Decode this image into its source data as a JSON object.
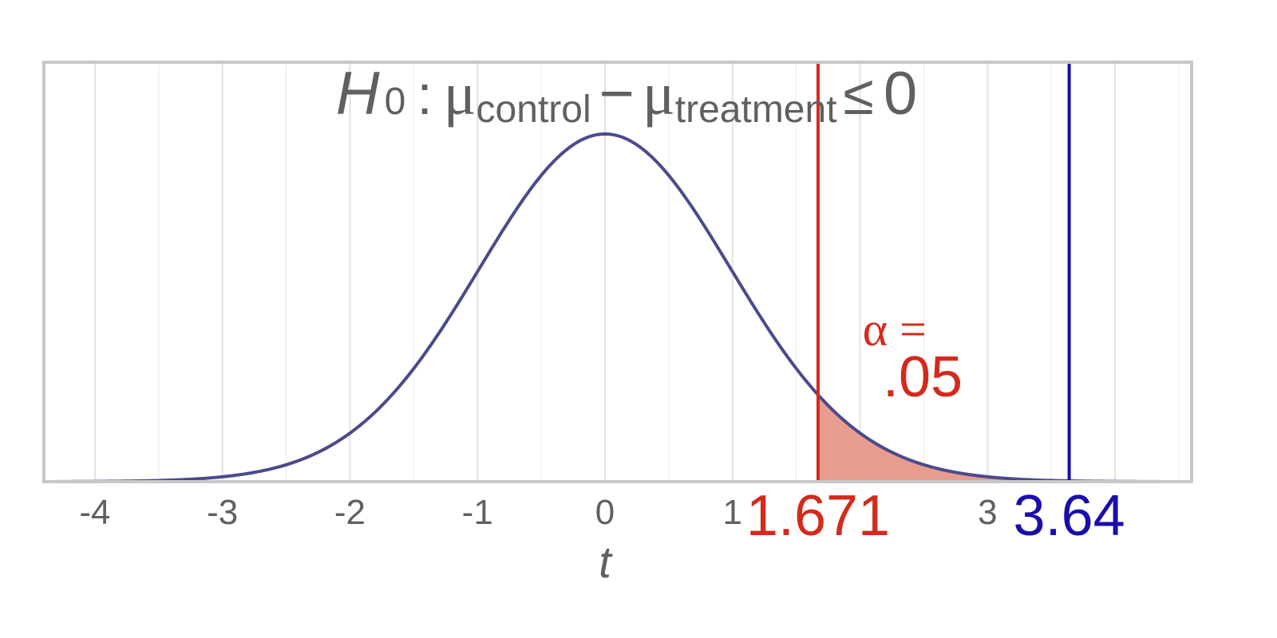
{
  "chart_data": {
    "type": "area",
    "distribution": "t",
    "xlabel": "t",
    "xlim": [
      -4.4,
      4.6
    ],
    "x_ticks": [
      -4,
      -3,
      -2,
      -1,
      0,
      1,
      3
    ],
    "x_tick_labels": [
      "-4",
      "-3",
      "-2",
      "-1",
      "0",
      "1",
      "3"
    ],
    "hypothesis": {
      "symbol": "H",
      "subscript": "0",
      "colon": ":",
      "mu": "μ",
      "group1": "control",
      "minus": "−",
      "group2": "treatment",
      "relation": "≤",
      "value": "0"
    },
    "critical_value": 1.671,
    "critical_label": "1.671",
    "alpha_label": "α =",
    "alpha_value_label": ".05",
    "observed_value": 3.64,
    "observed_label": "3.64",
    "colors": {
      "curve": "#4a4a8c",
      "critical": "#d42a1c",
      "shaded": "#e89c90",
      "observed": "#1a0dab",
      "text": "#606060",
      "grid_major": "#e2e2e2",
      "grid_minor": "#f0f0f0",
      "frame": "#c8c8c8"
    }
  }
}
